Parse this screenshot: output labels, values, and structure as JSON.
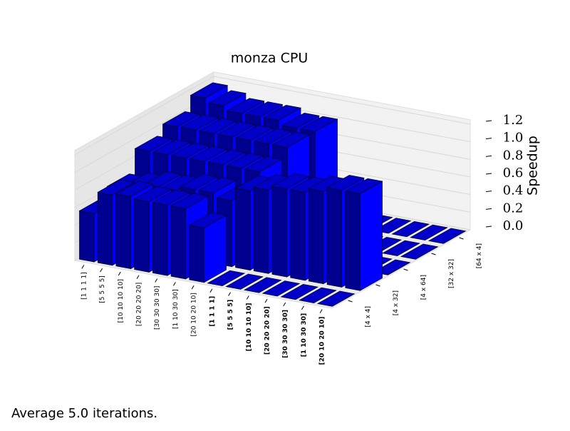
{
  "chart_data": {
    "type": "bar3d",
    "title": "monza CPU",
    "zlabel": "Speedup",
    "x_categories": [
      "[1 1 1 1]",
      "[5 5 5 5]",
      "[10 10 10 10]",
      "[20 20 20 20]",
      "[30 30 30 30]",
      "[1 10 30 30]",
      "[20 10 20 10]",
      "[1 1 1 1]",
      "[5 5 5 5]",
      "[10 10 10 10]",
      "[20 20 20 20]",
      "[30 30 30 30]",
      "[1 10 30 30]",
      "[20 10 20 10]"
    ],
    "y_categories": [
      "[4 x 4]",
      "[4 x 32]",
      "[4 x 64]",
      "[32 x 32]",
      "[64 x 4]"
    ],
    "values": [
      [
        0.55,
        0.8,
        0.82,
        0.8,
        0.8,
        0.8,
        0.62,
        0,
        0,
        0,
        0,
        0,
        0,
        0
      ],
      [
        0.65,
        0.7,
        0.75,
        0.75,
        0.8,
        0.8,
        0.75,
        0.9,
        0.95,
        1.0,
        1.0,
        1.05,
        1.1,
        1.1
      ],
      [
        0.9,
        0.9,
        0.9,
        0.9,
        0.9,
        0.9,
        0.9,
        0,
        0,
        0,
        0,
        0,
        0,
        0
      ],
      [
        1.0,
        1.0,
        1.0,
        1.0,
        1.0,
        1.0,
        1.0,
        0,
        0,
        0,
        0,
        0,
        0,
        0
      ],
      [
        1.15,
        1.1,
        1.05,
        1.05,
        1.05,
        1.0,
        1.0,
        0,
        0,
        0,
        0,
        0,
        0,
        0
      ]
    ],
    "color": "#0000ff",
    "zlim": [
      0,
      1.25
    ],
    "zticks": [
      {
        "value": 0,
        "label": "0.0"
      },
      0.2,
      0.4,
      0.6,
      0.8,
      {
        "value": 1,
        "label": "1.0"
      },
      1.2
    ],
    "footnote": "Average 5.0 iterations."
  }
}
